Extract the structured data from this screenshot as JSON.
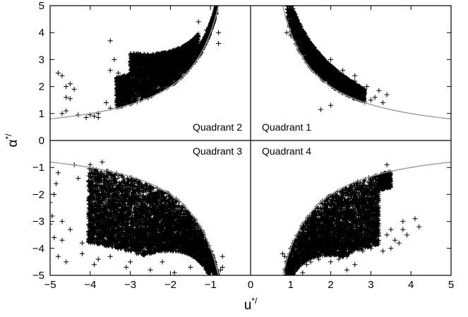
{
  "chart_data": {
    "type": "scatter",
    "title": "",
    "xlabel": "u",
    "xlabel_sup": "*/",
    "ylabel": "α",
    "ylabel_sup": "*/",
    "xlim": [
      -5,
      5
    ],
    "ylim": [
      -5,
      5
    ],
    "xticks": [
      -5,
      -4,
      -3,
      -2,
      -1,
      0,
      1,
      2,
      3,
      4,
      5
    ],
    "yticks": [
      -5,
      -4,
      -3,
      -2,
      -1,
      0,
      1,
      2,
      3,
      4,
      5
    ],
    "xtick_labels": [
      "−5",
      "−4",
      "−3",
      "−2",
      "−1",
      "0",
      "1",
      "2",
      "3",
      "4",
      "5"
    ],
    "ytick_labels": [
      "−5",
      "−4",
      "−3",
      "−2",
      "−1",
      "0",
      "1",
      "2",
      "3",
      "4",
      "5"
    ],
    "grid": false,
    "marker": "+",
    "marker_color": "#000000",
    "curve_color": "#9a9a9a",
    "hyperbolic_curve": "|u*/ · α*/| = 4",
    "quadrant_labels": [
      {
        "text": "Quadrant 1",
        "quadrant": 1
      },
      {
        "text": "Quadrant 2",
        "quadrant": 2
      },
      {
        "text": "Quadrant 3",
        "quadrant": 3
      },
      {
        "text": "Quadrant 4",
        "quadrant": 4
      }
    ],
    "series": [
      {
        "quadrant": 1,
        "x_range": [
          0.9,
          3.4
        ],
        "y_range": [
          1.1,
          4.1
        ],
        "scattered_points": [
          [
            0.9,
            4.0
          ],
          [
            1.0,
            3.9
          ],
          [
            1.1,
            3.85
          ],
          [
            1.3,
            3.9
          ],
          [
            1.6,
            3.0
          ],
          [
            2.0,
            3.0
          ],
          [
            2.3,
            2.6
          ],
          [
            2.6,
            2.2
          ],
          [
            2.8,
            1.7
          ],
          [
            2.9,
            2.0
          ],
          [
            3.0,
            1.5
          ],
          [
            3.1,
            1.6
          ],
          [
            3.3,
            1.4
          ],
          [
            3.4,
            1.7
          ],
          [
            3.2,
            1.85
          ],
          [
            2.6,
            2.4
          ],
          [
            1.75,
            1.15
          ],
          [
            2.0,
            1.3
          ]
        ]
      },
      {
        "quadrant": 2,
        "x_range": [
          -4.8,
          -0.7
        ],
        "y_range": [
          0.7,
          4.4
        ],
        "scattered_points": [
          [
            -4.8,
            2.5
          ],
          [
            -4.7,
            2.4
          ],
          [
            -4.6,
            2.0
          ],
          [
            -4.5,
            2.1
          ],
          [
            -4.4,
            1.9
          ],
          [
            -4.6,
            1.6
          ],
          [
            -4.5,
            1.55
          ],
          [
            -4.7,
            1.0
          ],
          [
            -4.6,
            1.1
          ],
          [
            -4.3,
            0.95
          ],
          [
            -4.1,
            0.85
          ],
          [
            -4.0,
            0.95
          ],
          [
            -3.9,
            0.9
          ],
          [
            -3.8,
            0.85
          ],
          [
            -3.5,
            3.7
          ],
          [
            -3.5,
            2.6
          ],
          [
            -3.3,
            2.5
          ],
          [
            -3.4,
            3.0
          ],
          [
            -2.8,
            2.6
          ],
          [
            -1.3,
            4.4
          ],
          [
            -1.1,
            4.1
          ],
          [
            -0.8,
            4.0
          ],
          [
            -0.8,
            3.6
          ],
          [
            -3.3,
            2.3
          ],
          [
            -3.6,
            1.4
          ],
          [
            -3.0,
            2.9
          ],
          [
            -1.8,
            3.0
          ],
          [
            -3.5,
            1.2
          ],
          [
            -3.8,
            1.0
          ]
        ]
      },
      {
        "quadrant": 3,
        "x_range": [
          -5.0,
          -0.6
        ],
        "y_range": [
          -5.0,
          -0.8
        ],
        "scattered_points": [
          [
            -5.0,
            -2.3
          ],
          [
            -5.0,
            -3.1
          ],
          [
            -4.9,
            -2.0
          ],
          [
            -4.9,
            -3.6
          ],
          [
            -4.8,
            -1.2
          ],
          [
            -4.8,
            -4.3
          ],
          [
            -4.7,
            -3.7
          ],
          [
            -4.6,
            -4.5
          ],
          [
            -4.5,
            -3.3
          ],
          [
            -4.3,
            -1.4
          ],
          [
            -4.2,
            -4.2
          ],
          [
            -4.0,
            -0.9
          ],
          [
            -3.9,
            -4.6
          ],
          [
            -3.8,
            -4.4
          ],
          [
            -3.6,
            -3.9
          ],
          [
            -3.5,
            -4.3
          ],
          [
            -3.3,
            -4.0
          ],
          [
            -3.1,
            -4.7
          ],
          [
            -3.0,
            -4.5
          ],
          [
            -2.8,
            -4.1
          ],
          [
            -2.5,
            -4.8
          ],
          [
            -2.2,
            -4.5
          ],
          [
            -1.9,
            -4.9
          ],
          [
            -1.5,
            -4.7
          ],
          [
            -1.2,
            -4.6
          ],
          [
            -0.9,
            -4.9
          ],
          [
            -0.7,
            -4.7
          ],
          [
            -0.7,
            -4.3
          ],
          [
            -4.95,
            -2.8
          ],
          [
            -4.85,
            -1.6
          ],
          [
            -4.4,
            -0.9
          ],
          [
            -3.7,
            -0.8
          ],
          [
            -0.9,
            -4.5
          ],
          [
            -0.75,
            -4.8
          ],
          [
            -4.7,
            -3.0
          ],
          [
            -4.2,
            -3.8
          ]
        ]
      },
      {
        "quadrant": 4,
        "x_range": [
          0.8,
          4.2
        ],
        "y_range": [
          -4.9,
          -0.9
        ],
        "scattered_points": [
          [
            0.8,
            -4.2
          ],
          [
            0.85,
            -4.3
          ],
          [
            0.9,
            -4.5
          ],
          [
            1.0,
            -4.0
          ],
          [
            1.2,
            -4.3
          ],
          [
            1.4,
            -4.6
          ],
          [
            1.5,
            -4.5
          ],
          [
            1.7,
            -4.4
          ],
          [
            2.0,
            -4.5
          ],
          [
            2.2,
            -4.4
          ],
          [
            2.4,
            -4.3
          ],
          [
            2.6,
            -4.6
          ],
          [
            2.8,
            -4.1
          ],
          [
            3.0,
            -4.0
          ],
          [
            3.1,
            -3.5
          ],
          [
            3.4,
            -3.5
          ],
          [
            3.5,
            -3.3
          ],
          [
            3.6,
            -3.7
          ],
          [
            3.8,
            -3.0
          ],
          [
            3.8,
            -3.3
          ],
          [
            3.9,
            -3.5
          ],
          [
            4.2,
            -3.2
          ],
          [
            4.1,
            -2.9
          ],
          [
            3.7,
            -3.8
          ],
          [
            3.5,
            -4.0
          ],
          [
            3.3,
            -4.1
          ],
          [
            1.1,
            -4.7
          ],
          [
            1.3,
            -4.9
          ],
          [
            2.4,
            -4.8
          ],
          [
            3.4,
            -0.9
          ]
        ]
      }
    ]
  }
}
